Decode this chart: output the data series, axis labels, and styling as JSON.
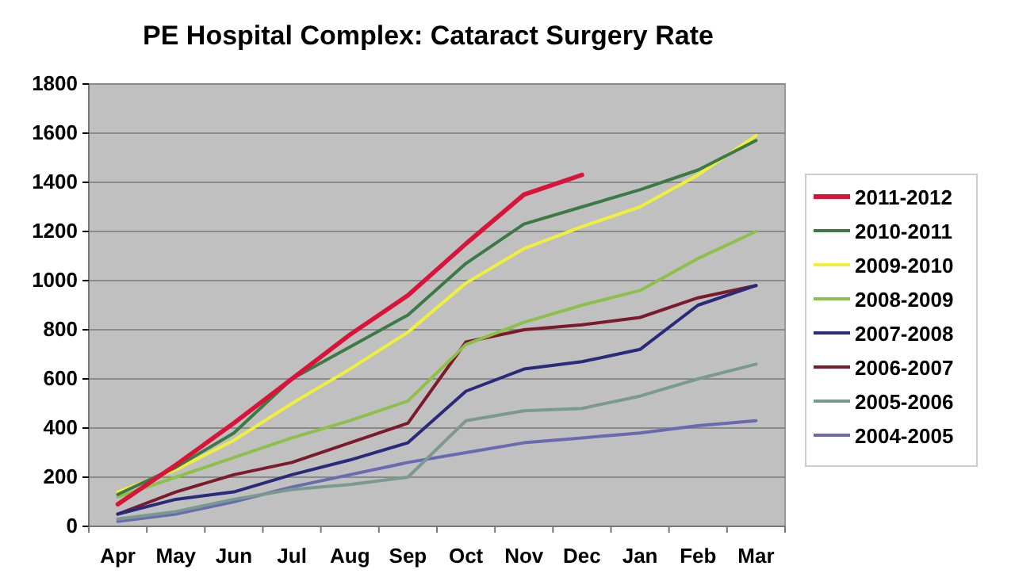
{
  "chart_data": {
    "type": "line",
    "title": "PE Hospital Complex: Cataract Surgery Rate",
    "categories": [
      "Apr",
      "May",
      "Jun",
      "Jul",
      "Aug",
      "Sep",
      "Oct",
      "Nov",
      "Dec",
      "Jan",
      "Feb",
      "Mar"
    ],
    "ylim": [
      0,
      1800
    ],
    "yticks": [
      0,
      200,
      400,
      600,
      800,
      1000,
      1200,
      1400,
      1600,
      1800
    ],
    "grid": "y",
    "legend": "right",
    "marker": "none",
    "series": [
      {
        "name": "2011-2012",
        "color": "#d9143a",
        "values": [
          90,
          250,
          420,
          600,
          780,
          940,
          1150,
          1350,
          1430,
          null,
          null,
          null
        ]
      },
      {
        "name": "2010-2011",
        "color": "#3c7a45",
        "values": [
          130,
          240,
          380,
          600,
          730,
          860,
          1070,
          1230,
          1300,
          1370,
          1450,
          1570
        ]
      },
      {
        "name": "2009-2010",
        "color": "#f0f03c",
        "values": [
          140,
          230,
          350,
          500,
          640,
          790,
          990,
          1130,
          1220,
          1300,
          1430,
          1590
        ]
      },
      {
        "name": "2008-2009",
        "color": "#8cc04a",
        "values": [
          120,
          200,
          280,
          360,
          430,
          510,
          740,
          830,
          900,
          960,
          1090,
          1200
        ]
      },
      {
        "name": "2007-2008",
        "color": "#2a2a7a",
        "values": [
          50,
          110,
          140,
          210,
          270,
          340,
          550,
          640,
          670,
          720,
          900,
          980
        ]
      },
      {
        "name": "2006-2007",
        "color": "#7a1a2a",
        "values": [
          50,
          140,
          210,
          260,
          340,
          420,
          750,
          800,
          820,
          850,
          930,
          980
        ]
      },
      {
        "name": "2005-2006",
        "color": "#7a9a90",
        "values": [
          30,
          60,
          110,
          150,
          170,
          200,
          430,
          470,
          480,
          530,
          600,
          660
        ]
      },
      {
        "name": "2004-2005",
        "color": "#6a6ab0",
        "values": [
          20,
          50,
          100,
          160,
          210,
          260,
          300,
          340,
          360,
          380,
          410,
          430
        ]
      }
    ]
  }
}
